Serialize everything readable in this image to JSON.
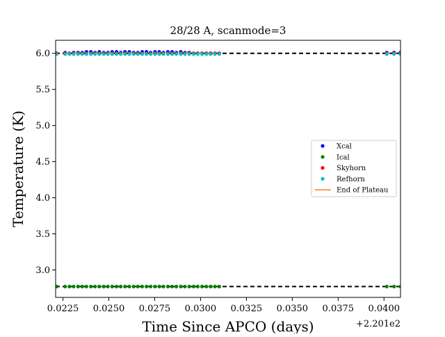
{
  "chart_data": {
    "type": "scatter",
    "title": "28/28 A, scanmode=3",
    "xlabel": "Time Since APCO (days)",
    "ylabel": "Temperature (K)",
    "x_offset_label": "+2.201e2",
    "xlim": [
      0.0221,
      0.0409
    ],
    "ylim": [
      2.62,
      6.18
    ],
    "xticks": [
      "0.0225",
      "0.0250",
      "0.0275",
      "0.0300",
      "0.0325",
      "0.0350",
      "0.0375",
      "0.0400"
    ],
    "yticks": [
      "3.0",
      "3.5",
      "4.0",
      "4.5",
      "5.0",
      "5.5",
      "6.0"
    ],
    "legend_position": "center-right",
    "x": [
      0.02215,
      0.02262,
      0.02285,
      0.02308,
      0.02332,
      0.02355,
      0.02378,
      0.02402,
      0.02425,
      0.02448,
      0.02472,
      0.02495,
      0.02518,
      0.02542,
      0.02565,
      0.02588,
      0.02612,
      0.02635,
      0.02658,
      0.02682,
      0.02705,
      0.02728,
      0.02752,
      0.02775,
      0.02798,
      0.02822,
      0.02845,
      0.02868,
      0.02892,
      0.02915,
      0.02938,
      0.02962,
      0.02985,
      0.03008,
      0.03032,
      0.03055,
      0.03078,
      0.03102,
      0.04015,
      0.04055,
      0.0409
    ],
    "series": [
      {
        "name": "Xcal",
        "color": "#0000ff",
        "values": [
          6.0,
          6.01,
          6.0,
          6.01,
          6.01,
          6.01,
          6.02,
          6.02,
          6.01,
          6.02,
          6.01,
          6.01,
          6.02,
          6.02,
          6.01,
          6.02,
          6.02,
          6.01,
          6.01,
          6.02,
          6.02,
          6.01,
          6.02,
          6.02,
          6.01,
          6.02,
          6.02,
          6.01,
          6.02,
          6.01,
          6.01,
          6.0,
          6.0,
          6.0,
          6.0,
          6.0,
          6.0,
          6.0,
          6.01,
          6.01,
          6.01
        ]
      },
      {
        "name": "Ical",
        "color": "#008000",
        "values": [
          2.77,
          2.77,
          2.77,
          2.77,
          2.77,
          2.77,
          2.77,
          2.77,
          2.77,
          2.77,
          2.77,
          2.77,
          2.77,
          2.77,
          2.77,
          2.77,
          2.77,
          2.77,
          2.77,
          2.77,
          2.77,
          2.77,
          2.77,
          2.77,
          2.77,
          2.77,
          2.77,
          2.77,
          2.77,
          2.77,
          2.77,
          2.77,
          2.77,
          2.77,
          2.77,
          2.77,
          2.77,
          2.77,
          2.77,
          2.77,
          2.77
        ]
      },
      {
        "name": "Skyhorn",
        "color": "#ff0000",
        "values": [
          6.0,
          6.0,
          6.0,
          6.0,
          6.0,
          6.0,
          6.0,
          6.0,
          6.0,
          6.0,
          6.0,
          6.0,
          6.0,
          6.0,
          6.0,
          6.0,
          6.0,
          6.0,
          6.0,
          6.0,
          6.0,
          6.0,
          6.0,
          6.0,
          6.0,
          6.0,
          6.0,
          6.0,
          6.0,
          6.0,
          6.0,
          6.0,
          6.0,
          6.0,
          6.0,
          6.0,
          6.0,
          6.0,
          6.0,
          6.0,
          6.0
        ]
      },
      {
        "name": "Refhorn",
        "color": "#00bfbf",
        "values": [
          5.99,
          5.99,
          5.99,
          5.99,
          5.99,
          5.99,
          5.99,
          5.99,
          5.99,
          5.99,
          5.99,
          5.99,
          5.99,
          5.99,
          5.99,
          5.99,
          5.99,
          5.99,
          5.99,
          5.99,
          5.99,
          5.99,
          5.99,
          5.99,
          5.99,
          5.99,
          5.99,
          5.99,
          5.99,
          5.99,
          5.99,
          5.99,
          5.99,
          5.99,
          5.99,
          5.99,
          5.99,
          5.99,
          5.99,
          5.99,
          5.99
        ]
      }
    ],
    "reference_lines": [
      {
        "y": 6.0,
        "color": "#000000",
        "style": "dashed"
      },
      {
        "y": 2.77,
        "color": "#000000",
        "style": "dashed"
      }
    ],
    "legend_extra": {
      "name": "End of Plateau",
      "color": "#ff7f0e",
      "style": "line"
    }
  }
}
